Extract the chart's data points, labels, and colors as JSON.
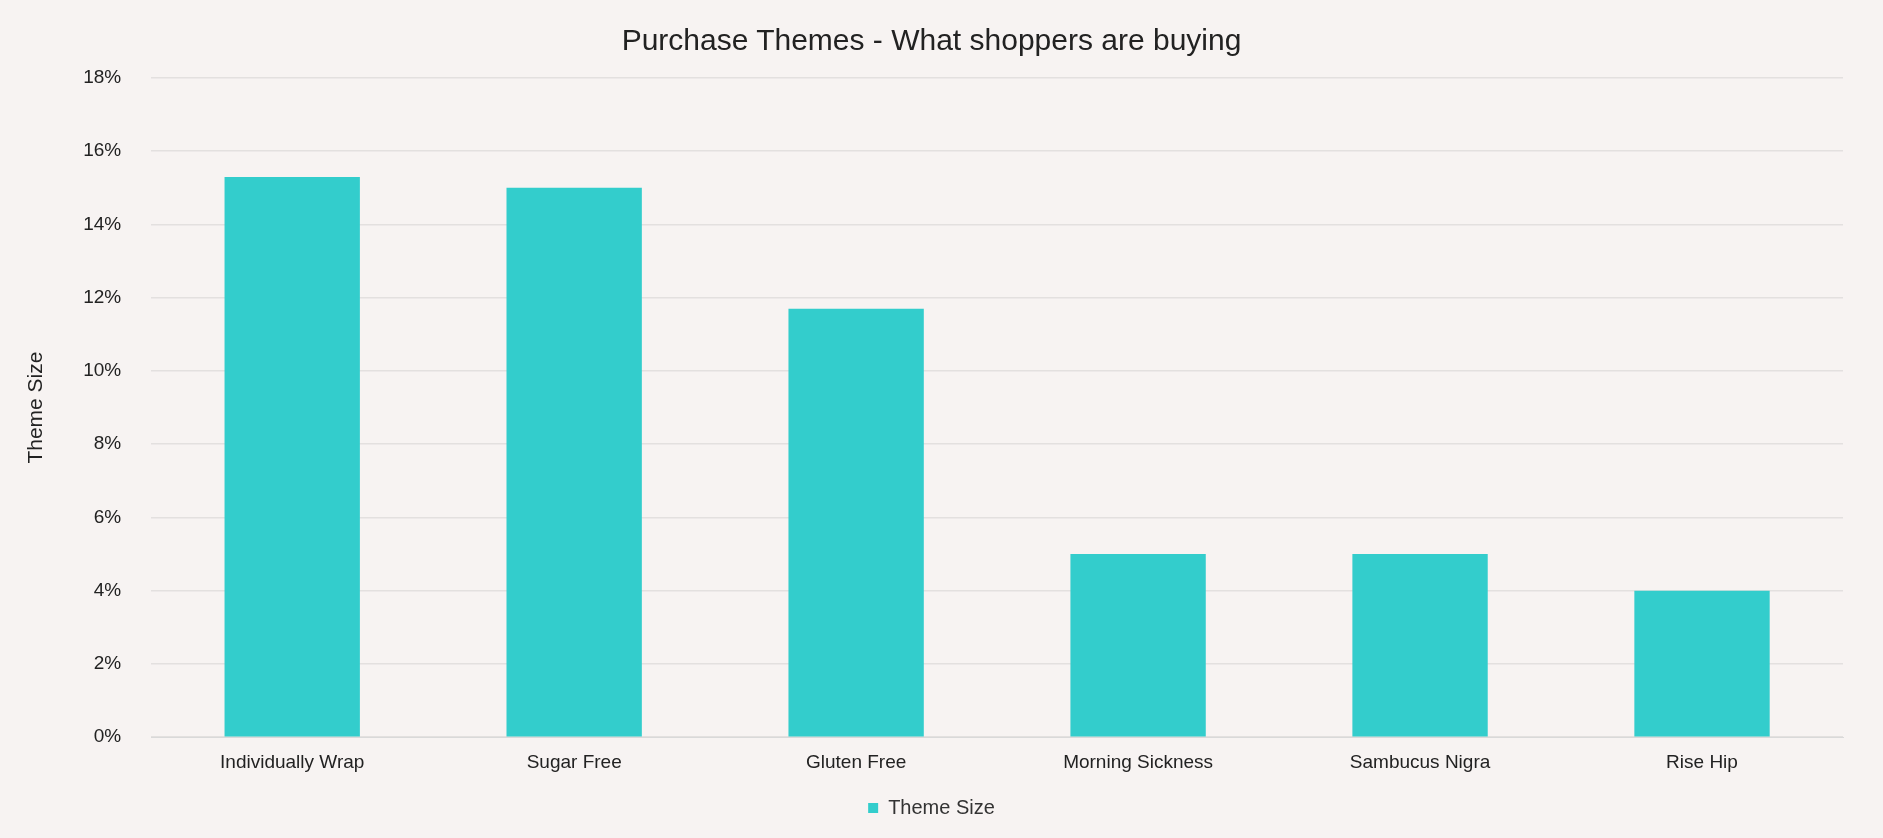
{
  "chart_data": {
    "type": "bar",
    "title": "Purchase Themes - What shoppers are buying",
    "ylabel": "Theme Size",
    "categories": [
      "Individually Wrap",
      "Sugar Free",
      "Gluten Free",
      "Morning Sickness",
      "Sambucus Nigra",
      "Rise Hip"
    ],
    "series": [
      {
        "name": "Theme Size",
        "color": "#33cdcc",
        "values": [
          15.3,
          15.0,
          11.7,
          5.0,
          5.0,
          4.0
        ]
      }
    ],
    "ylim": [
      0,
      18
    ],
    "yticks": [
      {
        "value": 0,
        "label": "0%"
      },
      {
        "value": 2,
        "label": "2%"
      },
      {
        "value": 4,
        "label": "4%"
      },
      {
        "value": 6,
        "label": "6%"
      },
      {
        "value": 8,
        "label": "8%"
      },
      {
        "value": 10,
        "label": "10%"
      },
      {
        "value": 12,
        "label": "12%"
      },
      {
        "value": 14,
        "label": "14%"
      },
      {
        "value": 16,
        "label": "16%"
      },
      {
        "value": 18,
        "label": "18%"
      }
    ],
    "grid": "y",
    "legend": "bottom"
  }
}
